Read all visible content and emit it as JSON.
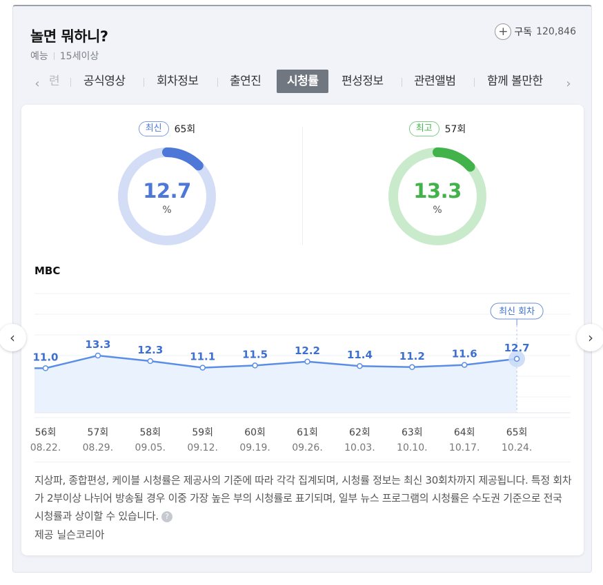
{
  "header": {
    "title": "놀면 뭐하니?",
    "genre": "예능",
    "rating": "15세이상",
    "subscribe_label": "구독",
    "subscriber_count": "120,846"
  },
  "tabs": {
    "partial_left": "련",
    "items": [
      {
        "label": "공식영상",
        "active": false
      },
      {
        "label": "회차정보",
        "active": false
      },
      {
        "label": "출연진",
        "active": false
      },
      {
        "label": "시청률",
        "active": true
      },
      {
        "label": "편성정보",
        "active": false
      },
      {
        "label": "관련앨범",
        "active": false
      },
      {
        "label": "함께 볼만한",
        "active": false
      }
    ]
  },
  "gauges": {
    "latest": {
      "badge": "최신",
      "episode": "65회",
      "value": "12.7",
      "unit": "%",
      "fraction": 0.127,
      "color": "#4d78d8",
      "track": "#d3def6"
    },
    "best": {
      "badge": "최고",
      "episode": "57회",
      "value": "13.3",
      "unit": "%",
      "fraction": 0.133,
      "color": "#41b34a",
      "track": "#c9ebcc"
    }
  },
  "station": "MBC",
  "chart_data": {
    "type": "area",
    "series": [
      {
        "values": [
          11.0,
          13.3,
          12.3,
          11.1,
          11.5,
          12.2,
          11.4,
          11.2,
          11.6,
          12.7
        ]
      }
    ],
    "episodes": [
      "56회",
      "57회",
      "58회",
      "59회",
      "60회",
      "61회",
      "62회",
      "63회",
      "64회",
      "65회"
    ],
    "dates": [
      "08.22.",
      "08.29.",
      "09.05.",
      "09.12.",
      "09.19.",
      "09.26.",
      "10.03.",
      "10.10.",
      "10.17.",
      "10.24."
    ],
    "value_labels": [
      "11.0",
      "13.3",
      "12.3",
      "11.1",
      "11.5",
      "12.2",
      "11.4",
      "11.2",
      "11.6",
      "12.7"
    ],
    "highlight_label": "최신 회차",
    "highlight_index": 9,
    "line_color": "#5a8ee6",
    "fill_color": "#eaf2fd"
  },
  "notice": "지상파, 종합편성, 케이블 시청률은 제공사의 기준에 따라 각각 집계되며, 시청률 정보는 최신 30회차까지 제공됩니다. 특정 회차가 2부이상 나뉘어 방송될 경우 이중 가장 높은 부의 시청률로 표기되며, 일부 뉴스 프로그램의 시청률은 수도권 기준으로 전국 시청률과 상이할 수 있습니다.",
  "notice_help_icon": "?",
  "provider": "제공 닐슨코리아",
  "icons": {
    "prev": "‹",
    "next": "›",
    "plus": "+"
  }
}
